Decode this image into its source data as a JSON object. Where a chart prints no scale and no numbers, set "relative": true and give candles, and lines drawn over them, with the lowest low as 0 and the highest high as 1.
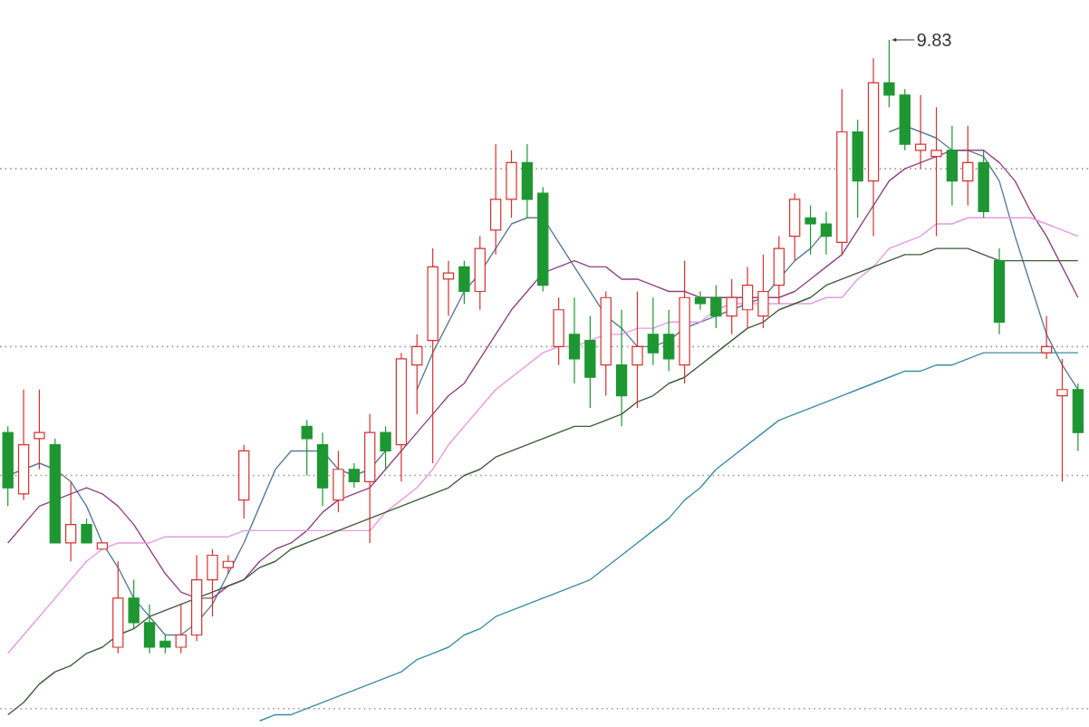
{
  "chart_data": {
    "type": "candlestick",
    "relative": true,
    "categories": [
      null,
      null,
      null,
      null,
      null,
      null,
      null,
      null,
      null,
      null,
      null,
      null,
      null,
      null,
      null,
      null,
      null,
      null,
      null,
      null,
      null,
      null,
      null,
      null,
      null,
      null,
      null,
      null,
      null,
      null,
      null,
      null,
      null,
      null,
      null,
      null,
      null,
      null,
      null,
      null,
      null,
      null,
      null,
      null,
      null,
      null,
      null,
      null,
      null,
      null,
      null,
      null,
      null,
      null,
      null,
      null,
      null,
      null,
      null,
      null,
      null,
      null,
      null,
      null,
      null,
      null,
      null,
      null,
      null
    ],
    "ohlc": [
      [
        0.36,
        0.37,
        0.24,
        0.27
      ],
      [
        0.26,
        0.43,
        0.25,
        0.34
      ],
      [
        0.35,
        0.43,
        0.3,
        0.36
      ],
      [
        0.34,
        0.35,
        0.18,
        0.18
      ],
      [
        0.18,
        0.28,
        0.15,
        0.21
      ],
      [
        0.21,
        0.22,
        0.18,
        0.18
      ],
      [
        0.17,
        0.18,
        0.17,
        0.18
      ],
      [
        0.01,
        0.15,
        0.0,
        0.09
      ],
      [
        0.09,
        0.12,
        0.04,
        0.05
      ],
      [
        0.05,
        0.08,
        0.0,
        0.01
      ],
      [
        0.02,
        0.03,
        0.0,
        0.01
      ],
      [
        0.01,
        0.08,
        0.0,
        0.03
      ],
      [
        0.03,
        0.16,
        0.02,
        0.12
      ],
      [
        0.12,
        0.17,
        0.06,
        0.16
      ],
      [
        0.14,
        0.16,
        0.13,
        0.15
      ],
      [
        0.25,
        0.34,
        0.22,
        0.33
      ],
      null,
      null,
      null,
      [
        0.37,
        0.38,
        0.29,
        0.35
      ],
      [
        0.34,
        0.36,
        0.24,
        0.27
      ],
      [
        0.25,
        0.33,
        0.23,
        0.3
      ],
      [
        0.3,
        0.31,
        0.27,
        0.28
      ],
      [
        0.28,
        0.39,
        0.18,
        0.36
      ],
      [
        0.36,
        0.37,
        0.3,
        0.33
      ],
      [
        0.34,
        0.49,
        0.28,
        0.48
      ],
      [
        0.47,
        0.52,
        0.39,
        0.5
      ],
      [
        0.51,
        0.66,
        0.31,
        0.63
      ],
      [
        0.61,
        0.64,
        0.55,
        0.62
      ],
      [
        0.63,
        0.64,
        0.57,
        0.59
      ],
      [
        0.59,
        0.68,
        0.56,
        0.66
      ],
      [
        0.69,
        0.83,
        0.65,
        0.74
      ],
      [
        0.74,
        0.82,
        0.71,
        0.8
      ],
      [
        0.8,
        0.83,
        0.71,
        0.74
      ],
      [
        0.75,
        0.76,
        0.59,
        0.6
      ],
      [
        0.5,
        0.58,
        0.47,
        0.56
      ],
      [
        0.52,
        0.58,
        0.44,
        0.48
      ],
      [
        0.51,
        0.55,
        0.4,
        0.45
      ],
      [
        0.47,
        0.59,
        0.42,
        0.58
      ],
      [
        0.47,
        0.56,
        0.37,
        0.42
      ],
      [
        0.47,
        0.59,
        0.4,
        0.5
      ],
      [
        0.52,
        0.58,
        0.47,
        0.49
      ],
      [
        0.52,
        0.56,
        0.46,
        0.48
      ],
      [
        0.47,
        0.64,
        0.44,
        0.58
      ],
      [
        0.58,
        0.59,
        0.56,
        0.57
      ],
      [
        0.58,
        0.6,
        0.53,
        0.55
      ],
      [
        0.55,
        0.61,
        0.52,
        0.58
      ],
      [
        0.56,
        0.63,
        0.53,
        0.6
      ],
      [
        0.55,
        0.65,
        0.53,
        0.59
      ],
      [
        0.6,
        0.68,
        0.57,
        0.66
      ],
      [
        0.68,
        0.75,
        0.64,
        0.74
      ],
      [
        0.71,
        0.73,
        0.65,
        0.7
      ],
      [
        0.7,
        0.72,
        0.65,
        0.68
      ],
      [
        0.67,
        0.92,
        0.65,
        0.85
      ],
      [
        0.85,
        0.87,
        0.71,
        0.77
      ],
      [
        0.77,
        0.97,
        0.68,
        0.93
      ],
      [
        0.93,
        1.0,
        0.89,
        0.91
      ],
      [
        0.91,
        0.92,
        0.82,
        0.83
      ],
      [
        0.82,
        0.91,
        0.79,
        0.83
      ],
      [
        0.81,
        0.89,
        0.68,
        0.82
      ],
      [
        0.82,
        0.86,
        0.73,
        0.77
      ],
      [
        0.77,
        0.86,
        0.73,
        0.8
      ],
      [
        0.8,
        0.82,
        0.71,
        0.72
      ],
      [
        0.64,
        0.66,
        0.52,
        0.54
      ],
      null,
      null,
      [
        0.49,
        0.55,
        0.48,
        0.5
      ],
      [
        0.42,
        0.48,
        0.28,
        0.43
      ],
      [
        0.43,
        0.44,
        0.33,
        0.36
      ]
    ],
    "series": [
      {
        "type": "line",
        "color": "#5b7c99",
        "values": [
          0.29,
          0.3,
          0.31,
          0.3,
          0.28,
          0.24,
          0.18,
          0.14,
          0.09,
          0.06,
          0.03,
          0.03,
          0.05,
          0.08,
          0.13,
          0.18,
          0.24,
          0.3,
          0.33,
          0.33,
          0.33,
          0.3,
          0.29,
          0.3,
          0.33,
          null,
          0.43,
          0.49,
          0.54,
          0.59,
          0.62,
          0.66,
          0.7,
          0.71,
          0.71,
          0.67,
          0.63,
          0.59,
          0.55,
          0.53,
          0.5,
          0.5,
          0.51,
          0.53,
          0.54,
          0.55,
          0.56,
          0.57,
          0.58,
          0.61,
          0.64,
          0.66,
          0.69,
          null,
          null,
          null,
          0.85,
          0.86,
          0.85,
          0.84,
          0.82,
          0.82,
          0.81,
          0.77,
          0.68,
          0.6,
          0.52,
          0.47,
          0.43
        ]
      },
      {
        "type": "line",
        "color": "#8e4585",
        "values": [
          0.18,
          0.21,
          0.24,
          0.25,
          0.26,
          0.27,
          0.26,
          0.24,
          0.21,
          0.17,
          0.13,
          0.1,
          0.09,
          0.09,
          0.11,
          0.12,
          0.15,
          0.17,
          0.18,
          0.2,
          0.23,
          0.25,
          0.26,
          0.27,
          0.3,
          0.33,
          0.36,
          0.39,
          0.42,
          0.44,
          0.48,
          0.52,
          0.56,
          0.59,
          0.62,
          0.63,
          0.64,
          0.63,
          0.63,
          0.61,
          0.61,
          0.6,
          0.59,
          0.59,
          0.58,
          0.58,
          0.58,
          0.58,
          0.58,
          0.58,
          0.59,
          0.61,
          0.63,
          0.65,
          0.69,
          0.73,
          0.77,
          0.79,
          0.8,
          0.81,
          0.82,
          0.82,
          0.82,
          0.8,
          0.77,
          0.72,
          0.68,
          0.63,
          0.58
        ]
      },
      {
        "type": "line",
        "color": "#e49be4",
        "values": [
          0.0,
          0.03,
          0.06,
          0.09,
          0.12,
          0.15,
          0.17,
          0.18,
          0.18,
          0.18,
          0.19,
          0.19,
          0.19,
          0.19,
          0.19,
          0.2,
          0.2,
          0.2,
          0.2,
          0.2,
          0.2,
          0.2,
          0.2,
          0.2,
          0.23,
          0.25,
          0.27,
          0.3,
          0.34,
          0.37,
          0.4,
          0.43,
          0.45,
          0.47,
          0.49,
          0.5,
          0.5,
          0.51,
          0.52,
          0.52,
          0.53,
          0.53,
          0.54,
          0.54,
          0.54,
          0.56,
          0.57,
          0.57,
          0.57,
          0.57,
          0.57,
          0.57,
          0.58,
          0.58,
          0.61,
          0.63,
          0.66,
          0.67,
          0.68,
          0.7,
          0.7,
          0.71,
          0.71,
          0.71,
          0.71,
          0.71,
          0.7,
          0.69,
          0.68
        ]
      },
      {
        "type": "line",
        "color": "#3d5c3a",
        "values": [
          -0.1,
          -0.08,
          -0.05,
          -0.03,
          -0.02,
          0.0,
          0.01,
          0.03,
          0.04,
          0.06,
          0.07,
          0.08,
          0.09,
          0.1,
          0.11,
          0.12,
          0.14,
          0.15,
          0.17,
          0.18,
          0.19,
          0.2,
          0.21,
          0.22,
          0.23,
          0.24,
          0.25,
          0.26,
          0.27,
          0.29,
          0.3,
          0.32,
          0.33,
          0.34,
          0.35,
          0.36,
          0.37,
          0.37,
          0.38,
          0.39,
          0.41,
          0.42,
          0.44,
          0.45,
          0.47,
          0.49,
          0.51,
          0.53,
          0.54,
          0.56,
          0.57,
          0.58,
          0.6,
          0.61,
          0.62,
          0.63,
          0.64,
          0.65,
          0.65,
          0.66,
          0.66,
          0.66,
          0.65,
          0.64,
          0.64,
          0.64,
          0.64,
          0.64,
          0.64
        ]
      },
      {
        "type": "line",
        "color": "#3b8ea5",
        "values": [
          null,
          null,
          null,
          null,
          null,
          null,
          null,
          null,
          null,
          null,
          null,
          null,
          null,
          null,
          null,
          null,
          -0.11,
          -0.1,
          -0.1,
          -0.09,
          -0.08,
          -0.07,
          -0.06,
          -0.05,
          -0.04,
          -0.03,
          -0.01,
          0.0,
          0.01,
          0.03,
          0.04,
          0.06,
          0.07,
          0.08,
          0.09,
          0.1,
          0.11,
          0.12,
          0.14,
          0.16,
          0.18,
          0.2,
          0.22,
          0.25,
          0.27,
          0.3,
          0.32,
          0.34,
          0.36,
          0.38,
          0.39,
          0.4,
          0.41,
          0.42,
          0.43,
          0.44,
          0.45,
          0.46,
          0.46,
          0.47,
          0.47,
          0.48,
          0.49,
          0.49,
          0.49,
          0.49,
          0.49,
          0.49,
          0.49
        ]
      }
    ],
    "ref_lines": [
      {
        "axis": "y",
        "value": 0.79,
        "color": "#999999",
        "line_style": "dotted"
      },
      {
        "axis": "y",
        "value": 0.5,
        "color": "#999999",
        "line_style": "dotted"
      },
      {
        "axis": "y",
        "value": 0.29,
        "color": "#999999",
        "line_style": "dotted"
      },
      {
        "axis": "y",
        "value": -0.09,
        "color": "#999999",
        "line_style": "dotted"
      }
    ],
    "annotations": [
      "9.83"
    ]
  }
}
